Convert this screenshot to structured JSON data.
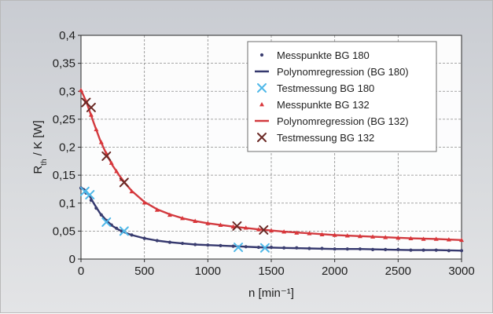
{
  "chart_data": {
    "type": "scatter",
    "title": "",
    "xlabel": "n [min⁻¹]",
    "ylabel": "R_th / K [W]",
    "ylabel_main": "R",
    "ylabel_sub": "th",
    "ylabel_rest": " / K [W]",
    "xlim": [
      0,
      3000
    ],
    "ylim": [
      0,
      0.4
    ],
    "x_ticks": [
      0,
      500,
      1000,
      1500,
      2000,
      2500,
      3000
    ],
    "x_tick_labels": [
      "0",
      "500",
      "1000",
      "1500",
      "2000",
      "2500",
      "3000"
    ],
    "y_ticks": [
      0,
      0.05,
      0.1,
      0.15,
      0.2,
      0.25,
      0.3,
      0.35,
      0.4
    ],
    "y_tick_labels": [
      "0",
      "0,05",
      "0,1",
      "0,15",
      "0,2",
      "0,25",
      "0,3",
      "0,35",
      "0,4"
    ],
    "grid": true,
    "legend_position": "top-right",
    "series": [
      {
        "name": "Messpunkte BG 180",
        "kind": "points",
        "marker": "dot",
        "color": "#3b3e70",
        "x": [
          0,
          40,
          80,
          120,
          160,
          200,
          240,
          280,
          320,
          400,
          500,
          600,
          700,
          800,
          900,
          1000,
          1100,
          1200,
          1300,
          1400,
          1500,
          1600,
          1700,
          1800,
          1900,
          2000,
          2100,
          2200,
          2300,
          2400,
          2500,
          2600,
          2700,
          2800,
          2900,
          3000
        ],
        "y": [
          0.127,
          0.118,
          0.105,
          0.091,
          0.079,
          0.069,
          0.061,
          0.055,
          0.05,
          0.043,
          0.037,
          0.033,
          0.03,
          0.028,
          0.026,
          0.025,
          0.024,
          0.023,
          0.022,
          0.021,
          0.021,
          0.02,
          0.02,
          0.019,
          0.019,
          0.018,
          0.018,
          0.018,
          0.017,
          0.017,
          0.017,
          0.016,
          0.016,
          0.016,
          0.015,
          0.015
        ]
      },
      {
        "name": "Polynomregression (BG 180)",
        "kind": "line",
        "color": "#35386e",
        "x": [
          0,
          25,
          50,
          75,
          100,
          150,
          200,
          250,
          300,
          350,
          400,
          500,
          600,
          700,
          800,
          900,
          1000,
          1200,
          1400,
          1600,
          1800,
          2000,
          2200,
          2400,
          2600,
          2800,
          3000
        ],
        "y": [
          0.127,
          0.125,
          0.119,
          0.11,
          0.1,
          0.082,
          0.069,
          0.059,
          0.052,
          0.047,
          0.043,
          0.037,
          0.033,
          0.03,
          0.028,
          0.026,
          0.025,
          0.023,
          0.021,
          0.02,
          0.019,
          0.018,
          0.018,
          0.017,
          0.016,
          0.016,
          0.015
        ]
      },
      {
        "name": "Testmessung BG 180",
        "kind": "points",
        "marker": "x",
        "color": "#4fb8e8",
        "x": [
          30,
          70,
          200,
          340,
          1240,
          1450
        ],
        "y": [
          0.121,
          0.115,
          0.066,
          0.05,
          0.021,
          0.02
        ]
      },
      {
        "name": "Messpunkte BG 132",
        "kind": "points",
        "marker": "triangle",
        "color": "#d9363a",
        "x": [
          0,
          40,
          80,
          120,
          160,
          200,
          240,
          280,
          320,
          400,
          500,
          600,
          700,
          800,
          900,
          1000,
          1100,
          1200,
          1300,
          1400,
          1500,
          1600,
          1700,
          1800,
          1900,
          2000,
          2100,
          2200,
          2300,
          2400,
          2500,
          2600,
          2700,
          2800,
          2900,
          3000
        ],
        "y": [
          0.302,
          0.282,
          0.258,
          0.232,
          0.209,
          0.189,
          0.172,
          0.157,
          0.143,
          0.121,
          0.101,
          0.088,
          0.079,
          0.073,
          0.068,
          0.064,
          0.061,
          0.058,
          0.056,
          0.053,
          0.051,
          0.049,
          0.047,
          0.046,
          0.044,
          0.043,
          0.042,
          0.041,
          0.04,
          0.039,
          0.038,
          0.037,
          0.036,
          0.036,
          0.035,
          0.034
        ]
      },
      {
        "name": "Polynomregression (BG 132)",
        "kind": "line",
        "color": "#d23a3f",
        "x": [
          0,
          25,
          50,
          75,
          100,
          150,
          200,
          250,
          300,
          350,
          400,
          500,
          600,
          700,
          800,
          900,
          1000,
          1200,
          1400,
          1600,
          1800,
          2000,
          2200,
          2400,
          2600,
          2800,
          3000
        ],
        "y": [
          0.302,
          0.29,
          0.276,
          0.26,
          0.244,
          0.213,
          0.188,
          0.167,
          0.15,
          0.135,
          0.122,
          0.102,
          0.089,
          0.08,
          0.073,
          0.068,
          0.064,
          0.058,
          0.053,
          0.049,
          0.046,
          0.043,
          0.041,
          0.039,
          0.037,
          0.036,
          0.034
        ]
      },
      {
        "name": "Testmessung BG 132",
        "kind": "points",
        "marker": "x",
        "color": "#6b2a26",
        "x": [
          40,
          80,
          200,
          340,
          1230,
          1440
        ],
        "y": [
          0.28,
          0.271,
          0.184,
          0.137,
          0.059,
          0.052
        ]
      }
    ]
  }
}
